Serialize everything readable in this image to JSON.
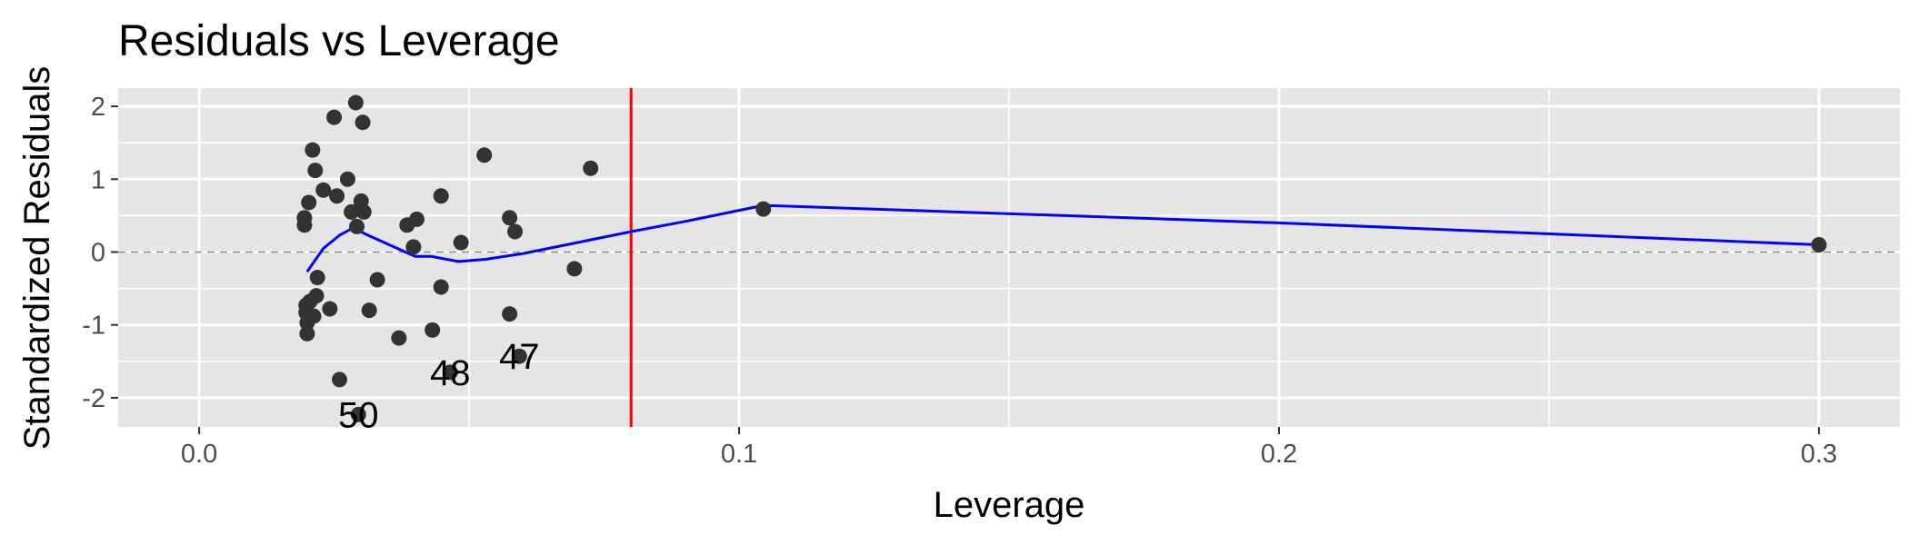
{
  "chart_data": {
    "type": "scatter",
    "title": "Residuals vs Leverage",
    "xlabel": "Leverage",
    "ylabel": "Standardized Residuals",
    "xlim": [
      -0.015,
      0.315
    ],
    "ylim": [
      -2.4,
      2.25
    ],
    "x_ticks": [
      0.0,
      0.1,
      0.2,
      0.3
    ],
    "x_tick_labels": [
      "0.0",
      "0.1",
      "0.2",
      "0.3"
    ],
    "y_ticks": [
      2,
      1,
      0,
      -1,
      -2
    ],
    "y_tick_labels": [
      "2",
      "1",
      "0",
      "-1",
      "-2"
    ],
    "grid": true,
    "reference_line": {
      "axis": "y",
      "value": 0,
      "style": "dashed",
      "color": "#808080"
    },
    "threshold_line": {
      "axis": "x",
      "value": 0.08,
      "color": "#ff0000"
    },
    "smooth_line_color": "#0000ff",
    "point_color": "#333333",
    "panel_background": "#e5e5e5",
    "points": [
      {
        "x": 0.0195,
        "y": 0.47
      },
      {
        "x": 0.0195,
        "y": 0.37
      },
      {
        "x": 0.0198,
        "y": -0.73
      },
      {
        "x": 0.0198,
        "y": -0.83
      },
      {
        "x": 0.02,
        "y": -0.97
      },
      {
        "x": 0.02,
        "y": -1.12
      },
      {
        "x": 0.0203,
        "y": 0.68
      },
      {
        "x": 0.0205,
        "y": -0.68
      },
      {
        "x": 0.021,
        "y": 1.4
      },
      {
        "x": 0.0212,
        "y": -0.88
      },
      {
        "x": 0.0215,
        "y": 1.12
      },
      {
        "x": 0.0217,
        "y": -0.6
      },
      {
        "x": 0.0219,
        "y": -0.35
      },
      {
        "x": 0.023,
        "y": 0.85
      },
      {
        "x": 0.0242,
        "y": -0.78
      },
      {
        "x": 0.025,
        "y": 1.85
      },
      {
        "x": 0.0255,
        "y": 0.77
      },
      {
        "x": 0.026,
        "y": -1.75
      },
      {
        "x": 0.0275,
        "y": 1.0
      },
      {
        "x": 0.0282,
        "y": 0.55
      },
      {
        "x": 0.029,
        "y": 2.05
      },
      {
        "x": 0.0292,
        "y": 0.35
      },
      {
        "x": 0.03,
        "y": 0.7
      },
      {
        "x": 0.0303,
        "y": 1.78
      },
      {
        "x": 0.0305,
        "y": 0.55
      },
      {
        "x": 0.0315,
        "y": -0.8
      },
      {
        "x": 0.033,
        "y": -0.38
      },
      {
        "x": 0.037,
        "y": -1.18
      },
      {
        "x": 0.0385,
        "y": 0.37
      },
      {
        "x": 0.0397,
        "y": 0.07
      },
      {
        "x": 0.0403,
        "y": 0.45
      },
      {
        "x": 0.0432,
        "y": -1.07
      },
      {
        "x": 0.0448,
        "y": -0.48
      },
      {
        "x": 0.0448,
        "y": 0.77
      },
      {
        "x": 0.0485,
        "y": 0.13
      },
      {
        "x": 0.0528,
        "y": 1.33
      },
      {
        "x": 0.0575,
        "y": -0.85
      },
      {
        "x": 0.0575,
        "y": 0.47
      },
      {
        "x": 0.0585,
        "y": 0.28
      },
      {
        "x": 0.0695,
        "y": -0.23
      },
      {
        "x": 0.0725,
        "y": 1.15
      },
      {
        "x": 0.1045,
        "y": 0.59
      },
      {
        "x": 0.3,
        "y": 0.1
      },
      {
        "x": 0.0295,
        "y": -2.23,
        "label": "50"
      },
      {
        "x": 0.0465,
        "y": -1.65,
        "label": "48"
      },
      {
        "x": 0.0593,
        "y": -1.43,
        "label": "47"
      }
    ],
    "smooth_line": [
      {
        "x": 0.02,
        "y": -0.27
      },
      {
        "x": 0.023,
        "y": 0.05
      },
      {
        "x": 0.026,
        "y": 0.23
      },
      {
        "x": 0.0285,
        "y": 0.33
      },
      {
        "x": 0.031,
        "y": 0.24
      },
      {
        "x": 0.034,
        "y": 0.14
      },
      {
        "x": 0.037,
        "y": 0.04
      },
      {
        "x": 0.04,
        "y": -0.06
      },
      {
        "x": 0.043,
        "y": -0.06
      },
      {
        "x": 0.048,
        "y": -0.13
      },
      {
        "x": 0.053,
        "y": -0.1
      },
      {
        "x": 0.06,
        "y": -0.02
      },
      {
        "x": 0.07,
        "y": 0.13
      },
      {
        "x": 0.08,
        "y": 0.28
      },
      {
        "x": 0.09,
        "y": 0.42
      },
      {
        "x": 0.1045,
        "y": 0.64
      },
      {
        "x": 0.2,
        "y": 0.4
      },
      {
        "x": 0.3,
        "y": 0.1
      }
    ]
  }
}
